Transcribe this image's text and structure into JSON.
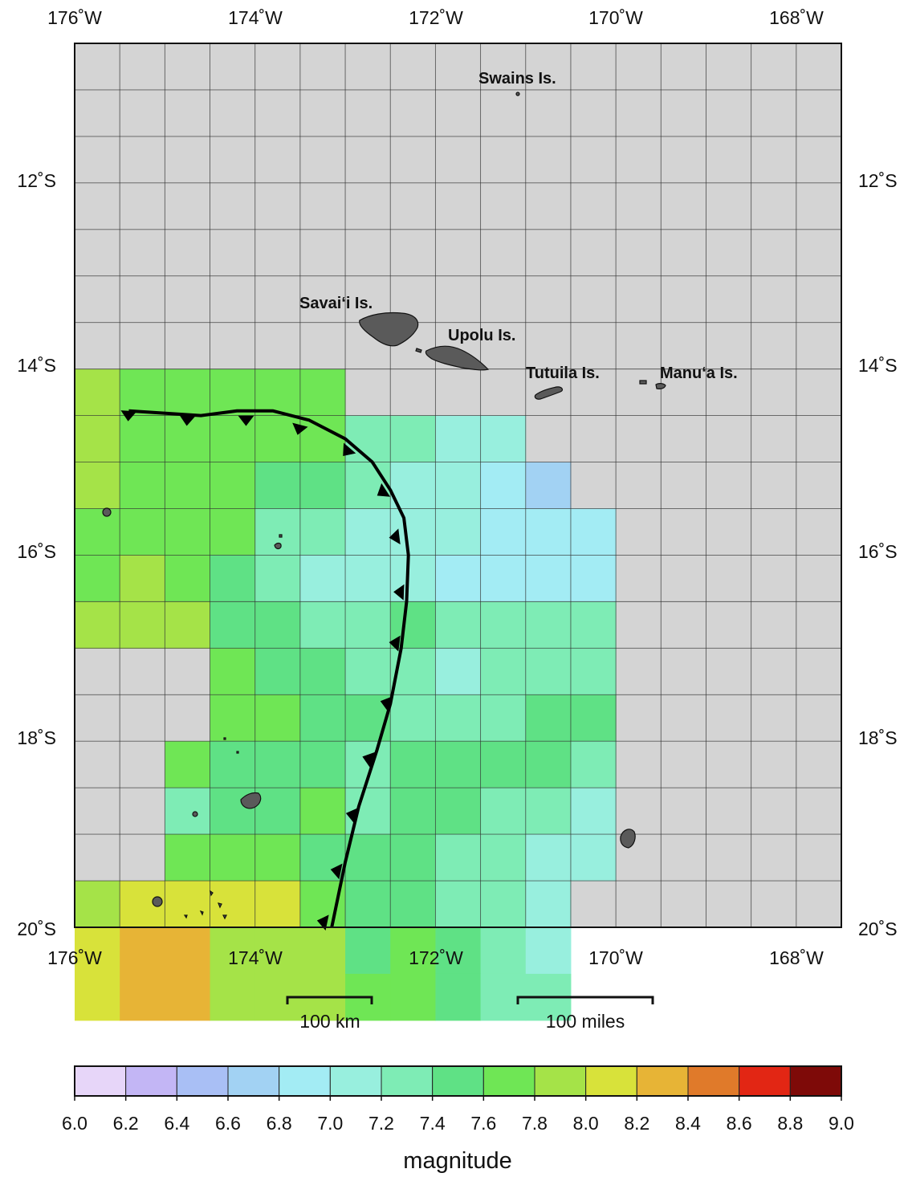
{
  "map": {
    "lon_range": [
      -176,
      -167.5
    ],
    "lat_range": [
      -20,
      -10.5
    ],
    "background_color": "#d4d4d4",
    "grid_step_deg": 0.5,
    "top_lon_labels": [
      "176˚W",
      "174˚W",
      "172˚W",
      "170˚W",
      "168˚W"
    ],
    "bottom_lon_labels": [
      "176˚W",
      "174˚W",
      "172˚W",
      "170˚W",
      "168˚W"
    ],
    "left_lat_labels": [
      "12˚S",
      "14˚S",
      "16˚S",
      "18˚S",
      "20˚S"
    ],
    "right_lat_labels": [
      "12˚S",
      "14˚S",
      "16˚S",
      "18˚S",
      "20˚S"
    ],
    "lon_label_values": [
      -176,
      -174,
      -172,
      -170,
      -168
    ],
    "lat_label_values": [
      -12,
      -14,
      -16,
      -18,
      -20
    ]
  },
  "islands": [
    {
      "name": "Swains Is.",
      "lon": -171.08,
      "lat": -11.05
    },
    {
      "name": "Savai'i Is.",
      "lon": -172.4,
      "lat": -13.6
    },
    {
      "name": "Upolu Is.",
      "lon": -171.8,
      "lat": -13.95
    },
    {
      "name": "Tutuila Is.",
      "lon": -170.7,
      "lat": -14.3
    },
    {
      "name": "Manu'a Is.",
      "lon": -169.5,
      "lat": -14.22
    }
  ],
  "island_labels": {
    "swains": "Swains Is.",
    "savaii": "Savai‘i Is.",
    "upolu": "Upolu Is.",
    "tutuila": "Tutuila Is.",
    "manua": "Manu‘a Is."
  },
  "magnitude_grid": {
    "cell_deg": 0.5,
    "lon_start": -176.0,
    "lat_start": -14.0,
    "comment_rows": "rows from -14.0 southward, columns from -176.0 eastward",
    "rows": [
      [
        7.85,
        7.65,
        7.65,
        7.65,
        7.65,
        7.65,
        null,
        null,
        null,
        null,
        null,
        null,
        null,
        null
      ],
      [
        7.85,
        7.65,
        7.65,
        7.65,
        7.65,
        7.65,
        7.25,
        7.25,
        7.05,
        7.05,
        null,
        null,
        null,
        null
      ],
      [
        7.85,
        7.65,
        7.65,
        7.65,
        7.45,
        7.45,
        7.25,
        7.05,
        7.05,
        6.85,
        6.75,
        null,
        null,
        null
      ],
      [
        7.65,
        7.65,
        7.65,
        7.65,
        7.25,
        7.25,
        7.05,
        7.05,
        7.05,
        6.85,
        6.85,
        6.95,
        null,
        null
      ],
      [
        7.65,
        7.85,
        7.65,
        7.45,
        7.25,
        7.05,
        7.05,
        7.05,
        6.95,
        6.95,
        6.95,
        6.95,
        null,
        null
      ],
      [
        7.85,
        7.85,
        7.85,
        7.45,
        7.45,
        7.25,
        7.25,
        7.45,
        7.25,
        7.25,
        7.25,
        7.25,
        null,
        null
      ],
      [
        null,
        null,
        null,
        7.65,
        7.45,
        7.45,
        7.25,
        7.25,
        7.05,
        7.25,
        7.25,
        7.25,
        null,
        null
      ],
      [
        null,
        null,
        null,
        7.65,
        7.65,
        7.45,
        7.45,
        7.25,
        7.25,
        7.25,
        7.45,
        7.45,
        null,
        null
      ],
      [
        null,
        null,
        7.65,
        7.45,
        7.45,
        7.45,
        7.25,
        7.45,
        7.45,
        7.45,
        7.45,
        7.25,
        null,
        null
      ],
      [
        null,
        null,
        7.25,
        7.45,
        7.45,
        7.65,
        7.25,
        7.45,
        7.45,
        7.25,
        7.25,
        7.05,
        null,
        null
      ],
      [
        null,
        null,
        7.65,
        7.65,
        7.65,
        7.45,
        7.45,
        7.45,
        7.25,
        7.25,
        7.05,
        7.05,
        null,
        null
      ],
      [
        7.85,
        8.05,
        8.05,
        8.05,
        8.05,
        7.65,
        7.45,
        7.45,
        7.25,
        7.25,
        7.05,
        null,
        null,
        null
      ],
      [
        8.05,
        8.25,
        8.25,
        7.85,
        7.85,
        7.85,
        7.45,
        7.65,
        7.45,
        7.25,
        7.05,
        null,
        null,
        null
      ],
      [
        8.05,
        8.25,
        8.25,
        7.85,
        7.85,
        7.85,
        7.65,
        7.65,
        7.45,
        7.25,
        7.25,
        null,
        null,
        null
      ]
    ]
  },
  "trench": {
    "points": [
      [
        -175.4,
        -14.45
      ],
      [
        -174.6,
        -14.5
      ],
      [
        -174.2,
        -14.45
      ],
      [
        -173.8,
        -14.45
      ],
      [
        -173.4,
        -14.55
      ],
      [
        -173.0,
        -14.75
      ],
      [
        -172.7,
        -15.0
      ],
      [
        -172.5,
        -15.3
      ],
      [
        -172.35,
        -15.6
      ],
      [
        -172.3,
        -16.0
      ],
      [
        -172.32,
        -16.5
      ],
      [
        -172.38,
        -17.0
      ],
      [
        -172.5,
        -17.6
      ],
      [
        -172.65,
        -18.1
      ],
      [
        -172.85,
        -18.7
      ],
      [
        -173.0,
        -19.3
      ],
      [
        -173.15,
        -20.0
      ]
    ],
    "teeth": [
      [
        -175.4,
        -14.45
      ],
      [
        -174.75,
        -14.5
      ],
      [
        -174.1,
        -14.5
      ],
      [
        -173.5,
        -14.6
      ],
      [
        -172.95,
        -14.85
      ],
      [
        -172.55,
        -15.3
      ],
      [
        -172.4,
        -15.8
      ],
      [
        -172.35,
        -16.4
      ],
      [
        -172.4,
        -16.95
      ],
      [
        -172.5,
        -17.6
      ],
      [
        -172.7,
        -18.2
      ],
      [
        -172.88,
        -18.8
      ],
      [
        -173.05,
        -19.4
      ],
      [
        -173.2,
        -19.95
      ]
    ]
  },
  "scale_bars": {
    "km_label": "100 km",
    "miles_label": "100 miles"
  },
  "colorbar": {
    "ticks": [
      "6.0",
      "6.2",
      "6.4",
      "6.6",
      "6.8",
      "7.0",
      "7.2",
      "7.4",
      "7.6",
      "7.8",
      "8.0",
      "8.2",
      "8.4",
      "8.6",
      "8.8",
      "9.0"
    ],
    "colors": [
      "#e7d6f9",
      "#c3b6f5",
      "#a9bff5",
      "#a2d2f3",
      "#a3ecf4",
      "#98efde",
      "#7eecb5",
      "#5fe185",
      "#6fe655",
      "#a5e348",
      "#d8e23a",
      "#e7b436",
      "#e07a2a",
      "#e22614",
      "#7e0a08"
    ],
    "title": "magnitude"
  }
}
